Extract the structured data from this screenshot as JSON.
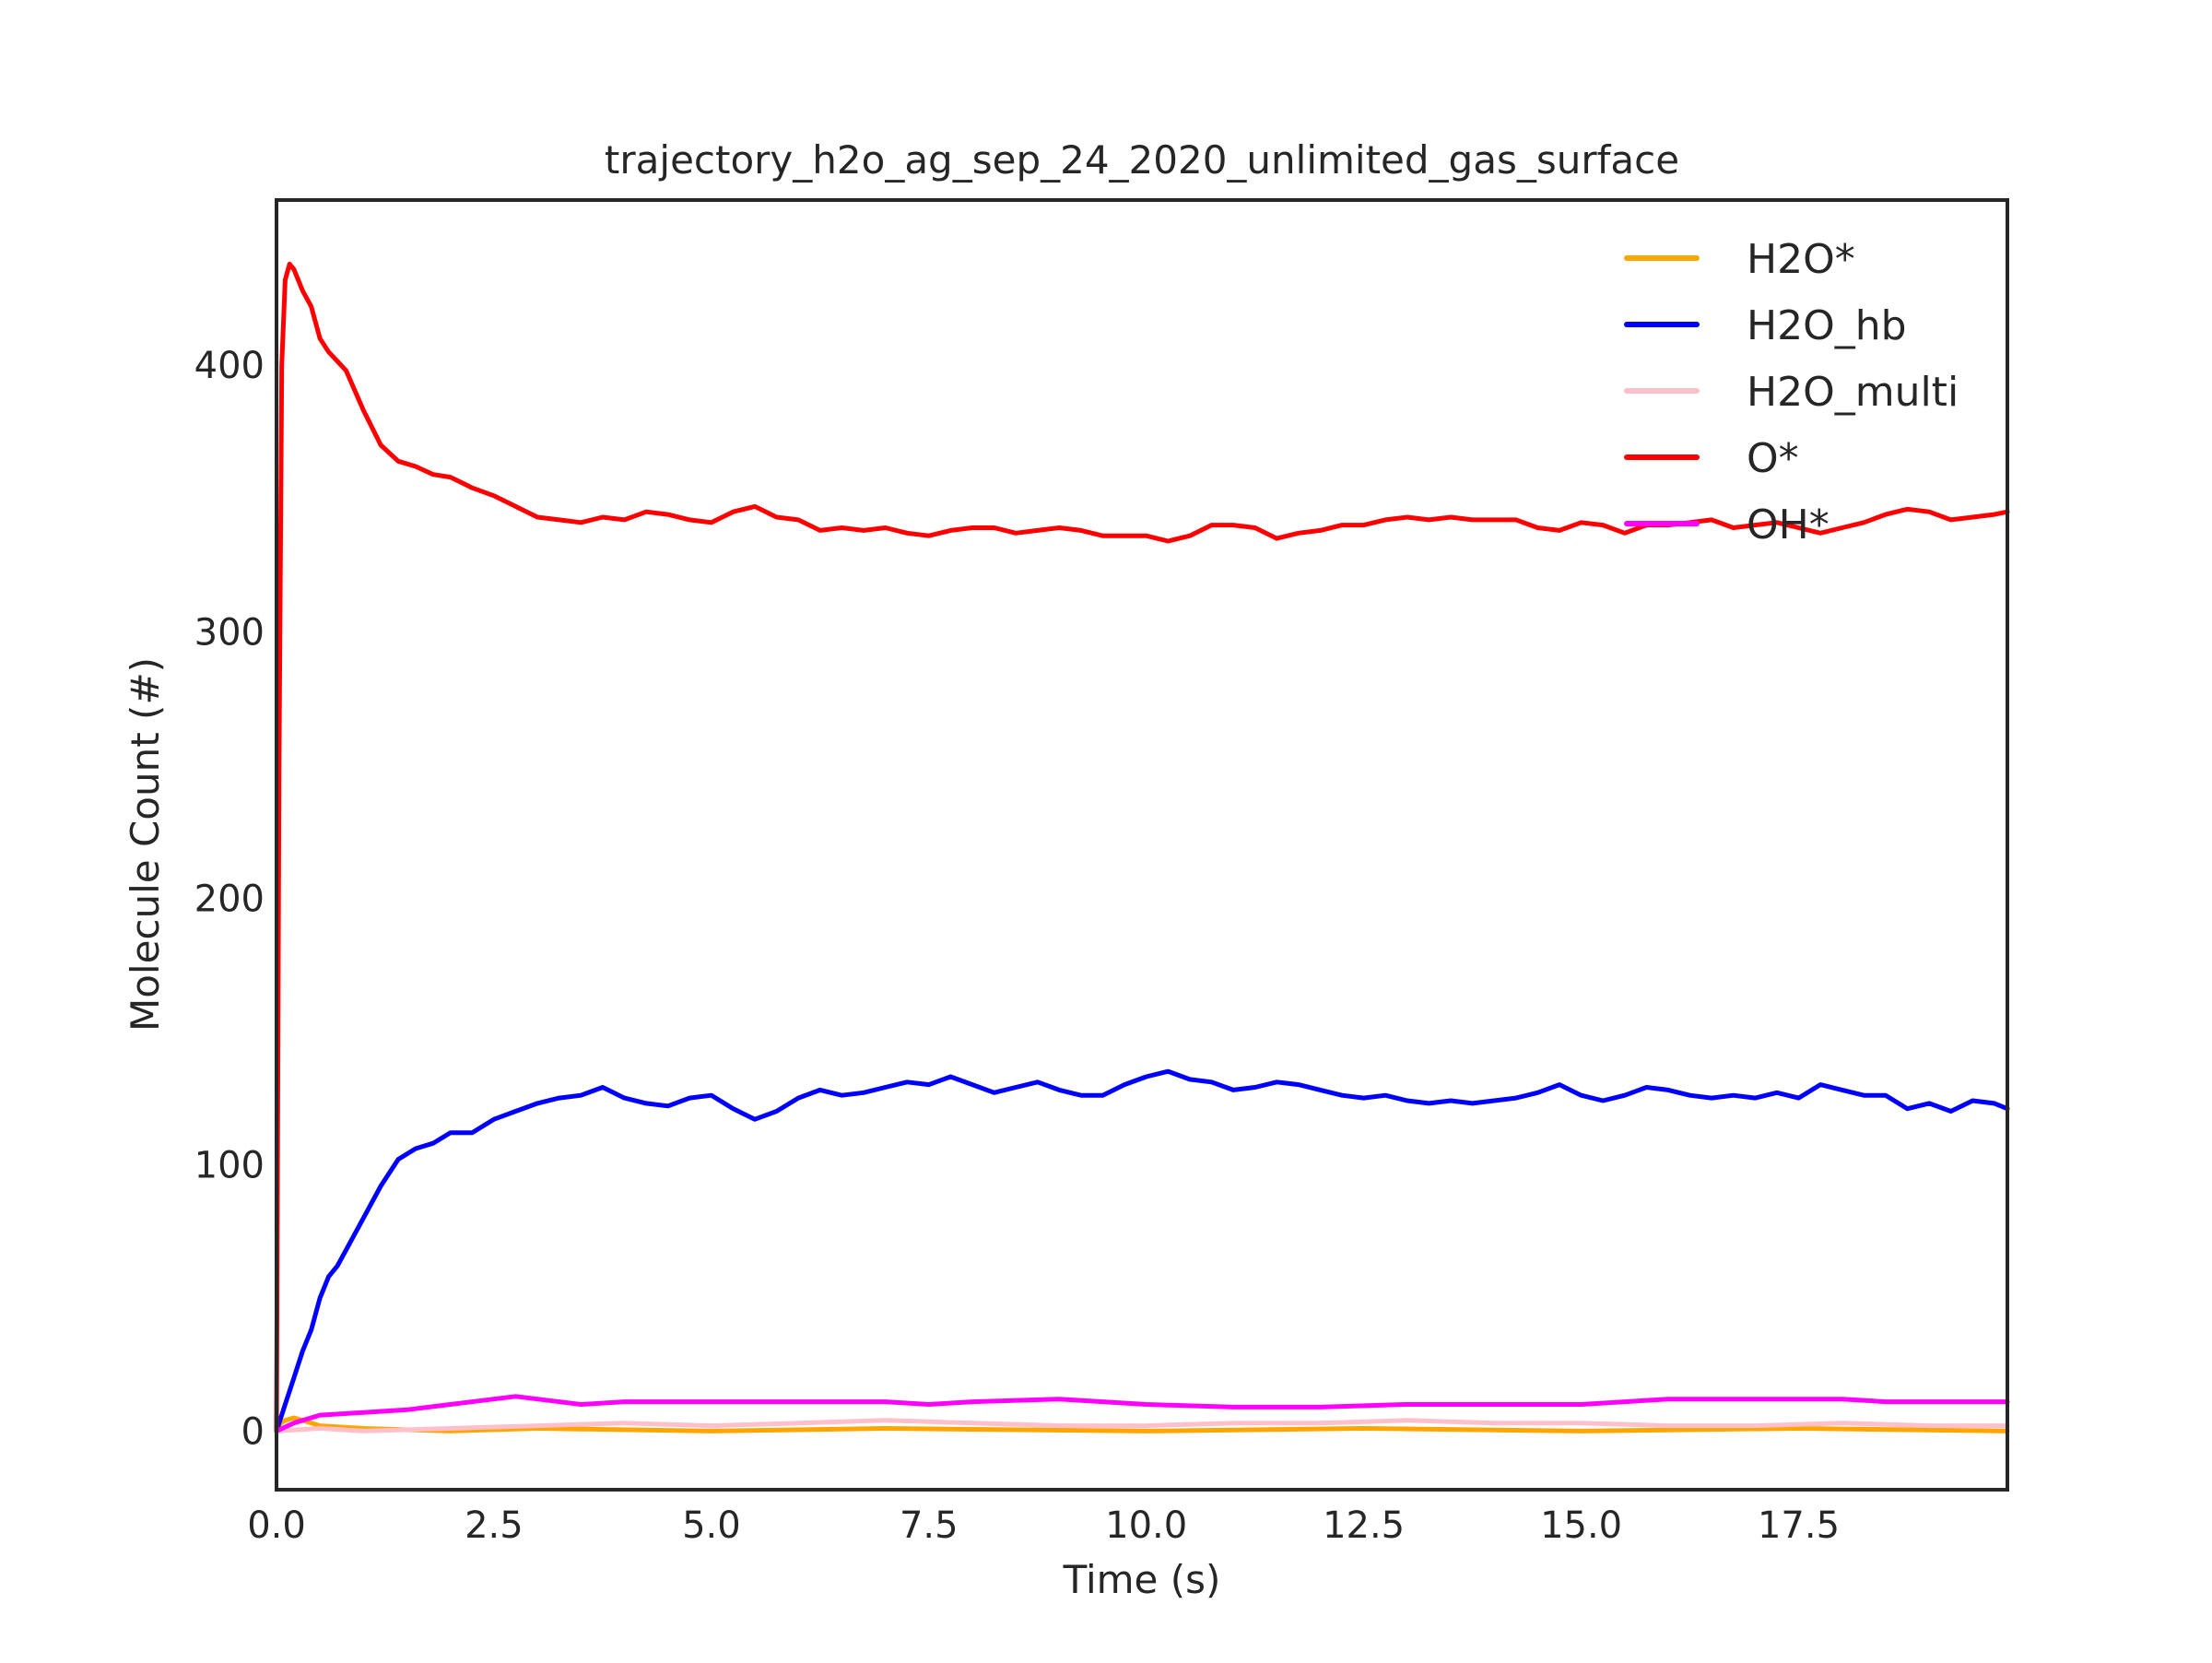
{
  "chart_data": {
    "type": "line",
    "title": "trajectory_h2o_ag_sep_24_2020_unlimited_gas_surface",
    "xlabel": "Time (s)",
    "ylabel": "Molecule Count (#)",
    "xlim": [
      0,
      19.9
    ],
    "ylim": [
      -22,
      462
    ],
    "xticks": [
      "0.0",
      "2.5",
      "5.0",
      "7.5",
      "10.0",
      "12.5",
      "15.0",
      "17.5"
    ],
    "xtick_values": [
      0,
      2.5,
      5,
      7.5,
      10,
      12.5,
      15,
      17.5
    ],
    "yticks": [
      "0",
      "100",
      "200",
      "300",
      "400"
    ],
    "ytick_values": [
      0,
      100,
      200,
      300,
      400
    ],
    "grid": false,
    "legend_position": "top-right",
    "series": [
      {
        "name": "H2O*",
        "color": "#ffa500",
        "x": [
          0,
          0.05,
          0.1,
          0.2,
          0.3,
          0.5,
          1.0,
          2.0,
          3.0,
          5.0,
          7.0,
          10.0,
          12.5,
          15.0,
          17.5,
          19.9
        ],
        "y": [
          0,
          3,
          4,
          5,
          4,
          2,
          1,
          0,
          1,
          0,
          1,
          0,
          1,
          0,
          1,
          0
        ]
      },
      {
        "name": "H2O_hb",
        "color": "#0000ff",
        "x": [
          0,
          0.05,
          0.1,
          0.2,
          0.3,
          0.4,
          0.5,
          0.6,
          0.7,
          0.8,
          1.0,
          1.2,
          1.4,
          1.6,
          1.8,
          2.0,
          2.25,
          2.5,
          2.75,
          3.0,
          3.25,
          3.5,
          3.75,
          4.0,
          4.25,
          4.5,
          4.75,
          5.0,
          5.25,
          5.5,
          5.75,
          6.0,
          6.25,
          6.5,
          6.75,
          7.0,
          7.25,
          7.5,
          7.75,
          8.0,
          8.25,
          8.5,
          8.75,
          9.0,
          9.25,
          9.5,
          9.75,
          10.0,
          10.25,
          10.5,
          10.75,
          11.0,
          11.25,
          11.5,
          11.75,
          12.0,
          12.25,
          12.5,
          12.75,
          13.0,
          13.25,
          13.5,
          13.75,
          14.0,
          14.25,
          14.5,
          14.75,
          15.0,
          15.25,
          15.5,
          15.75,
          16.0,
          16.25,
          16.5,
          16.75,
          17.0,
          17.25,
          17.5,
          17.75,
          18.0,
          18.25,
          18.5,
          18.75,
          19.0,
          19.25,
          19.5,
          19.75,
          19.9
        ],
        "y": [
          0,
          5,
          10,
          20,
          30,
          38,
          50,
          58,
          62,
          68,
          80,
          92,
          102,
          106,
          108,
          112,
          112,
          117,
          120,
          123,
          125,
          126,
          129,
          125,
          123,
          122,
          125,
          126,
          121,
          117,
          120,
          125,
          128,
          126,
          127,
          129,
          131,
          130,
          133,
          130,
          127,
          129,
          131,
          128,
          126,
          126,
          130,
          133,
          135,
          132,
          131,
          128,
          129,
          131,
          130,
          128,
          126,
          125,
          126,
          124,
          123,
          124,
          123,
          124,
          125,
          127,
          130,
          126,
          124,
          126,
          129,
          128,
          126,
          125,
          126,
          125,
          127,
          125,
          130,
          128,
          126,
          126,
          121,
          123,
          120,
          124,
          123,
          121
        ]
      },
      {
        "name": "H2O_multi",
        "color": "#ffc0cb",
        "x": [
          0,
          0.5,
          1.0,
          2.0,
          3.0,
          4.0,
          5.0,
          6.0,
          7.0,
          8.0,
          9.0,
          10.0,
          11.0,
          12.0,
          13.0,
          14.0,
          15.0,
          16.0,
          17.0,
          18.0,
          19.0,
          19.9
        ],
        "y": [
          0,
          1,
          0,
          1,
          2,
          3,
          2,
          3,
          4,
          3,
          2,
          2,
          3,
          3,
          4,
          3,
          3,
          2,
          2,
          3,
          2,
          2
        ]
      },
      {
        "name": "O*",
        "color": "#ff0000",
        "x": [
          0,
          0.03,
          0.06,
          0.1,
          0.15,
          0.2,
          0.3,
          0.4,
          0.5,
          0.6,
          0.8,
          1.0,
          1.2,
          1.4,
          1.6,
          1.8,
          2.0,
          2.25,
          2.5,
          2.75,
          3.0,
          3.25,
          3.5,
          3.75,
          4.0,
          4.25,
          4.5,
          4.75,
          5.0,
          5.25,
          5.5,
          5.75,
          6.0,
          6.25,
          6.5,
          6.75,
          7.0,
          7.25,
          7.5,
          7.75,
          8.0,
          8.25,
          8.5,
          8.75,
          9.0,
          9.25,
          9.5,
          9.75,
          10.0,
          10.25,
          10.5,
          10.75,
          11.0,
          11.25,
          11.5,
          11.75,
          12.0,
          12.25,
          12.5,
          12.75,
          13.0,
          13.25,
          13.5,
          13.75,
          14.0,
          14.25,
          14.5,
          14.75,
          15.0,
          15.25,
          15.5,
          15.75,
          16.0,
          16.25,
          16.5,
          16.75,
          17.0,
          17.25,
          17.5,
          17.75,
          18.0,
          18.25,
          18.5,
          18.75,
          19.0,
          19.25,
          19.5,
          19.75,
          19.9
        ],
        "y": [
          0,
          250,
          400,
          432,
          438,
          436,
          428,
          422,
          410,
          405,
          398,
          383,
          370,
          364,
          362,
          359,
          358,
          354,
          351,
          347,
          343,
          342,
          341,
          343,
          342,
          345,
          344,
          342,
          341,
          345,
          347,
          343,
          342,
          338,
          339,
          338,
          339,
          337,
          336,
          338,
          339,
          339,
          337,
          338,
          339,
          338,
          336,
          336,
          336,
          334,
          336,
          340,
          340,
          339,
          335,
          337,
          338,
          340,
          340,
          342,
          343,
          342,
          343,
          342,
          342,
          342,
          339,
          338,
          341,
          340,
          337,
          340,
          340,
          341,
          342,
          339,
          340,
          341,
          339,
          337,
          339,
          341,
          344,
          346,
          345,
          342,
          343,
          344,
          345
        ]
      },
      {
        "name": "OH*",
        "color": "#ff00ff",
        "x": [
          0,
          0.2,
          0.5,
          1.0,
          1.5,
          2.0,
          2.5,
          2.75,
          3.0,
          3.5,
          4.0,
          5.0,
          6.0,
          7.0,
          7.5,
          8.0,
          9.0,
          10.0,
          11.0,
          12.0,
          13.0,
          14.0,
          15.0,
          15.5,
          16.0,
          17.0,
          18.0,
          18.5,
          19.0,
          19.9
        ],
        "y": [
          0,
          3,
          6,
          7,
          8,
          10,
          12,
          13,
          12,
          10,
          11,
          11,
          11,
          11,
          10,
          11,
          12,
          10,
          9,
          9,
          10,
          10,
          10,
          11,
          12,
          12,
          12,
          11,
          11,
          11
        ]
      }
    ]
  }
}
